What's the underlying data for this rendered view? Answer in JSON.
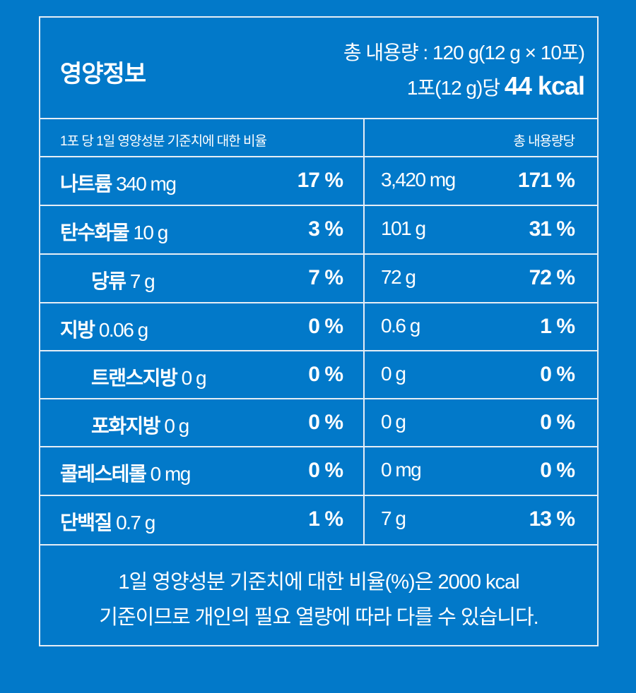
{
  "header": {
    "title": "영양정보",
    "total_content": "총 내용량 : 120 g(12 g × 10포)",
    "per_serving": "1포(12 g)당",
    "kcal": "44 kcal"
  },
  "subheader": {
    "left": "1포 당    1일 영양성분 기준치에 대한 비율",
    "right": "총 내용량당"
  },
  "rows": [
    {
      "name": "나트륨",
      "amount": "340 mg",
      "pct": "17 %",
      "total_amount": "3,420 mg",
      "total_pct": "171 %",
      "indent": false
    },
    {
      "name": "탄수화물",
      "amount": "10 g",
      "pct": "3 %",
      "total_amount": "101 g",
      "total_pct": "31 %",
      "indent": false
    },
    {
      "name": "당류",
      "amount": "7 g",
      "pct": "7 %",
      "total_amount": "72 g",
      "total_pct": "72 %",
      "indent": true
    },
    {
      "name": "지방",
      "amount": "0.06 g",
      "pct": "0 %",
      "total_amount": "0.6 g",
      "total_pct": "1 %",
      "indent": false
    },
    {
      "name": "트랜스지방",
      "amount": "0 g",
      "pct": "0 %",
      "total_amount": "0 g",
      "total_pct": "0 %",
      "indent": true
    },
    {
      "name": "포화지방",
      "amount": "0 g",
      "pct": "0 %",
      "total_amount": "0 g",
      "total_pct": "0 %",
      "indent": true
    },
    {
      "name": "콜레스테롤",
      "amount": "0 mg",
      "pct": "0 %",
      "total_amount": "0 mg",
      "total_pct": "0 %",
      "indent": false
    },
    {
      "name": "단백질",
      "amount": "0.7 g",
      "pct": "1 %",
      "total_amount": "7 g",
      "total_pct": "13 %",
      "indent": false
    }
  ],
  "footer": {
    "line1": "1일 영양성분 기준치에 대한 비율(%)은 2000 kcal",
    "line2": "기준이므로 개인의 필요 열량에 따라 다를 수 있습니다."
  }
}
